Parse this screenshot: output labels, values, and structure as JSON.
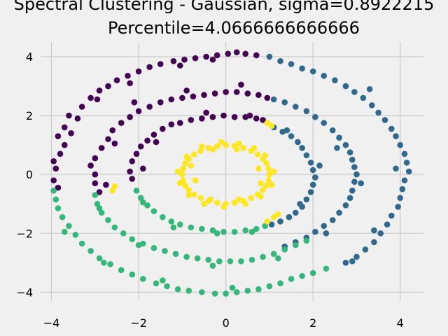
{
  "chart_data": {
    "type": "scatter",
    "title_lines": [
      "Spectral Clustering - Gaussian, sigma=0.8922215",
      "Percentile=4.0666666666666"
    ],
    "xlabel": "",
    "ylabel": "",
    "xlim": [
      -4.25,
      4.55
    ],
    "ylim": [
      -4.3,
      4.5
    ],
    "xticks": [
      -4,
      -2,
      0,
      2,
      4
    ],
    "yticks": [
      -4,
      -2,
      0,
      2,
      4
    ],
    "grid": true,
    "colors": [
      "#440154",
      "#31688e",
      "#35b779",
      "#fde725"
    ],
    "series": [
      {
        "color": "#440154",
        "points": [
          [
            -3.95,
            0.45
          ],
          [
            -3.9,
            0.2
          ],
          [
            -3.95,
            -0.2
          ],
          [
            -3.85,
            -0.45
          ],
          [
            -3.8,
            0.7
          ],
          [
            -3.7,
            1.0
          ],
          [
            -3.85,
            1.3
          ],
          [
            -3.7,
            1.6
          ],
          [
            -3.55,
            1.4
          ],
          [
            -3.4,
            1.9
          ],
          [
            -3.3,
            2.3
          ],
          [
            -3.1,
            2.6
          ],
          [
            -2.9,
            2.85
          ],
          [
            -2.7,
            3.0
          ],
          [
            -2.5,
            3.2
          ],
          [
            -2.25,
            3.35
          ],
          [
            -2.0,
            3.5
          ],
          [
            -1.75,
            3.65
          ],
          [
            -1.5,
            3.75
          ],
          [
            -1.2,
            3.85
          ],
          [
            -0.95,
            3.9
          ],
          [
            -0.7,
            3.95
          ],
          [
            -0.45,
            4.0
          ],
          [
            -0.2,
            4.05
          ],
          [
            0.05,
            4.1
          ],
          [
            0.25,
            4.15
          ],
          [
            0.45,
            4.1
          ],
          [
            0.7,
            4.05
          ],
          [
            -3.6,
            2.0
          ],
          [
            -2.95,
            2.55
          ],
          [
            -2.2,
            3.1
          ],
          [
            -1.05,
            3.7
          ],
          [
            -0.3,
            3.9
          ],
          [
            -3.1,
            0.3
          ],
          [
            -3.0,
            0.0
          ],
          [
            -3.0,
            -0.3
          ],
          [
            -2.9,
            -0.6
          ],
          [
            -3.0,
            0.55
          ],
          [
            -2.85,
            0.9
          ],
          [
            -2.7,
            1.2
          ],
          [
            -2.6,
            1.5
          ],
          [
            -2.4,
            1.75
          ],
          [
            -2.2,
            1.95
          ],
          [
            -2.0,
            2.15
          ],
          [
            -1.75,
            2.3
          ],
          [
            -1.5,
            2.45
          ],
          [
            -1.25,
            2.55
          ],
          [
            -1.0,
            2.6
          ],
          [
            -0.75,
            2.65
          ],
          [
            -0.5,
            2.7
          ],
          [
            -0.25,
            2.75
          ],
          [
            0.0,
            2.8
          ],
          [
            0.25,
            2.8
          ],
          [
            0.5,
            2.75
          ],
          [
            0.75,
            2.7
          ],
          [
            0.95,
            2.6
          ],
          [
            -2.75,
            -0.35
          ],
          [
            -2.55,
            1.05
          ],
          [
            -2.1,
            2.45
          ],
          [
            -0.9,
            2.85
          ],
          [
            0.35,
            3.05
          ],
          [
            -2.2,
            0.1
          ],
          [
            -2.15,
            0.45
          ],
          [
            -2.05,
            0.7
          ],
          [
            -1.95,
            0.95
          ],
          [
            -1.8,
            1.15
          ],
          [
            -1.65,
            1.35
          ],
          [
            -1.45,
            1.55
          ],
          [
            -1.25,
            1.7
          ],
          [
            -1.05,
            1.75
          ],
          [
            -0.8,
            1.85
          ],
          [
            -0.55,
            1.9
          ],
          [
            -0.3,
            1.95
          ],
          [
            -0.05,
            2.0
          ],
          [
            0.2,
            1.95
          ],
          [
            0.45,
            1.95
          ],
          [
            0.7,
            1.9
          ],
          [
            0.85,
            1.85
          ],
          [
            -2.15,
            -0.15
          ],
          [
            -1.9,
            0.2
          ],
          [
            -1.6,
            1.1
          ],
          [
            -0.45,
            2.1
          ],
          [
            0.55,
            2.0
          ]
        ]
      },
      {
        "color": "#31688e",
        "points": [
          [
            1.0,
            4.0
          ],
          [
            1.25,
            3.85
          ],
          [
            1.5,
            3.75
          ],
          [
            1.75,
            3.6
          ],
          [
            2.0,
            3.5
          ],
          [
            2.25,
            3.35
          ],
          [
            2.5,
            3.2
          ],
          [
            2.75,
            3.0
          ],
          [
            2.95,
            2.8
          ],
          [
            3.15,
            2.6
          ],
          [
            3.35,
            2.35
          ],
          [
            3.5,
            2.1
          ],
          [
            3.65,
            1.85
          ],
          [
            3.8,
            1.55
          ],
          [
            3.9,
            1.3
          ],
          [
            4.0,
            1.0
          ],
          [
            4.1,
            0.7
          ],
          [
            4.15,
            0.4
          ],
          [
            4.2,
            0.1
          ],
          [
            4.1,
            -0.2
          ],
          [
            4.05,
            -0.5
          ],
          [
            4.0,
            -0.8
          ],
          [
            3.95,
            -1.1
          ],
          [
            3.8,
            -1.4
          ],
          [
            3.7,
            -1.7
          ],
          [
            3.55,
            -2.0
          ],
          [
            3.4,
            -2.3
          ],
          [
            3.2,
            -2.55
          ],
          [
            3.0,
            -2.8
          ],
          [
            2.75,
            -3.0
          ],
          [
            3.3,
            2.9
          ],
          [
            3.9,
            0.2
          ],
          [
            3.4,
            -1.9
          ],
          [
            2.9,
            -2.95
          ],
          [
            1.1,
            2.55
          ],
          [
            1.35,
            2.45
          ],
          [
            1.6,
            2.3
          ],
          [
            1.85,
            2.15
          ],
          [
            2.05,
            1.95
          ],
          [
            2.25,
            1.75
          ],
          [
            2.45,
            1.5
          ],
          [
            2.6,
            1.25
          ],
          [
            2.75,
            1.0
          ],
          [
            2.85,
            0.75
          ],
          [
            2.9,
            0.5
          ],
          [
            2.95,
            0.25
          ],
          [
            3.0,
            0.0
          ],
          [
            2.95,
            -0.25
          ],
          [
            2.9,
            -0.55
          ],
          [
            2.85,
            -0.8
          ],
          [
            2.75,
            -1.05
          ],
          [
            2.6,
            -1.3
          ],
          [
            2.45,
            -1.55
          ],
          [
            2.25,
            -1.75
          ],
          [
            2.05,
            -1.95
          ],
          [
            1.85,
            -2.15
          ],
          [
            1.6,
            -2.3
          ],
          [
            1.35,
            -2.45
          ],
          [
            2.55,
            0.9
          ],
          [
            3.1,
            -0.3
          ],
          [
            2.3,
            -2.0
          ],
          [
            1.1,
            1.6
          ],
          [
            1.3,
            1.45
          ],
          [
            1.5,
            1.3
          ],
          [
            1.65,
            1.1
          ],
          [
            1.75,
            0.9
          ],
          [
            1.85,
            0.65
          ],
          [
            1.95,
            0.4
          ],
          [
            2.0,
            0.15
          ],
          [
            2.05,
            -0.1
          ],
          [
            2.0,
            -0.35
          ],
          [
            1.95,
            -0.6
          ],
          [
            1.85,
            -0.85
          ],
          [
            1.75,
            -1.1
          ],
          [
            1.6,
            -1.3
          ],
          [
            1.45,
            -1.45
          ],
          [
            1.25,
            -1.6
          ],
          [
            1.05,
            -1.7
          ],
          [
            2.15,
            0.3
          ],
          [
            1.7,
            -1.0
          ],
          [
            1.4,
            1.5
          ]
        ]
      },
      {
        "color": "#35b779",
        "points": [
          [
            -3.95,
            -0.55
          ],
          [
            -3.9,
            -0.85
          ],
          [
            -3.85,
            -1.15
          ],
          [
            -3.75,
            -1.45
          ],
          [
            -3.6,
            -1.75
          ],
          [
            -3.45,
            -2.05
          ],
          [
            -3.3,
            -2.35
          ],
          [
            -3.1,
            -2.6
          ],
          [
            -2.9,
            -2.85
          ],
          [
            -2.65,
            -3.05
          ],
          [
            -2.4,
            -3.25
          ],
          [
            -2.15,
            -3.4
          ],
          [
            -1.9,
            -3.55
          ],
          [
            -1.6,
            -3.7
          ],
          [
            -1.35,
            -3.8
          ],
          [
            -1.1,
            -3.9
          ],
          [
            -0.85,
            -3.95
          ],
          [
            -0.55,
            -4.0
          ],
          [
            -0.25,
            -4.05
          ],
          [
            0.0,
            -4.05
          ],
          [
            0.25,
            -4.0
          ],
          [
            0.5,
            -3.95
          ],
          [
            0.75,
            -3.9
          ],
          [
            1.0,
            -3.8
          ],
          [
            1.25,
            -3.7
          ],
          [
            1.5,
            -3.55
          ],
          [
            1.75,
            -3.45
          ],
          [
            2.0,
            -3.35
          ],
          [
            2.3,
            -3.2
          ],
          [
            -3.7,
            -1.95
          ],
          [
            -2.8,
            -3.0
          ],
          [
            -1.45,
            -3.6
          ],
          [
            0.15,
            -3.85
          ],
          [
            -3.0,
            -0.7
          ],
          [
            -2.95,
            -1.0
          ],
          [
            -2.85,
            -1.3
          ],
          [
            -2.7,
            -1.55
          ],
          [
            -2.55,
            -1.8
          ],
          [
            -2.35,
            -2.0
          ],
          [
            -2.15,
            -2.2
          ],
          [
            -1.9,
            -2.35
          ],
          [
            -1.65,
            -2.5
          ],
          [
            -1.4,
            -2.6
          ],
          [
            -1.15,
            -2.7
          ],
          [
            -0.9,
            -2.8
          ],
          [
            -0.65,
            -2.85
          ],
          [
            -0.4,
            -2.9
          ],
          [
            -0.15,
            -2.95
          ],
          [
            0.1,
            -2.95
          ],
          [
            0.35,
            -2.95
          ],
          [
            0.6,
            -2.9
          ],
          [
            0.85,
            -2.8
          ],
          [
            1.1,
            -2.7
          ],
          [
            1.35,
            -2.55
          ],
          [
            1.6,
            -2.4
          ],
          [
            1.85,
            -2.25
          ],
          [
            -2.9,
            -1.15
          ],
          [
            -2.0,
            -2.4
          ],
          [
            -0.3,
            -3.1
          ],
          [
            1.2,
            -2.85
          ],
          [
            -2.05,
            -0.55
          ],
          [
            -1.95,
            -0.8
          ],
          [
            -1.8,
            -1.05
          ],
          [
            -1.65,
            -1.25
          ],
          [
            -1.45,
            -1.45
          ],
          [
            -1.25,
            -1.6
          ],
          [
            -1.05,
            -1.7
          ],
          [
            -0.8,
            -1.8
          ],
          [
            -0.55,
            -1.85
          ],
          [
            -0.3,
            -1.9
          ],
          [
            -0.05,
            -1.95
          ],
          [
            0.2,
            -1.95
          ],
          [
            0.45,
            -1.9
          ],
          [
            0.7,
            -1.85
          ],
          [
            0.9,
            -1.75
          ],
          [
            -1.9,
            -0.95
          ],
          [
            -1.2,
            -1.8
          ],
          [
            -0.2,
            -2.0
          ],
          [
            0.6,
            -1.95
          ]
        ]
      },
      {
        "color": "#fde725",
        "points": [
          [
            -1.0,
            0.0
          ],
          [
            -0.98,
            0.2
          ],
          [
            -0.93,
            0.38
          ],
          [
            -0.85,
            0.53
          ],
          [
            -0.73,
            0.68
          ],
          [
            -0.58,
            0.8
          ],
          [
            -0.4,
            0.9
          ],
          [
            -0.2,
            0.96
          ],
          [
            0.0,
            1.0
          ],
          [
            0.2,
            0.97
          ],
          [
            0.4,
            0.9
          ],
          [
            0.58,
            0.8
          ],
          [
            0.73,
            0.68
          ],
          [
            0.85,
            0.53
          ],
          [
            0.93,
            0.38
          ],
          [
            0.98,
            0.2
          ],
          [
            1.0,
            0.0
          ],
          [
            0.98,
            -0.2
          ],
          [
            0.93,
            -0.38
          ],
          [
            0.85,
            -0.53
          ],
          [
            0.73,
            -0.68
          ],
          [
            0.58,
            -0.8
          ],
          [
            0.4,
            -0.9
          ],
          [
            0.2,
            -0.96
          ],
          [
            0.0,
            -1.0
          ],
          [
            -0.2,
            -0.96
          ],
          [
            -0.4,
            -0.9
          ],
          [
            -0.58,
            -0.8
          ],
          [
            -0.73,
            -0.68
          ],
          [
            -0.85,
            -0.53
          ],
          [
            -0.93,
            -0.38
          ],
          [
            -0.98,
            -0.2
          ],
          [
            -1.1,
            0.1
          ],
          [
            -1.05,
            -0.3
          ],
          [
            -0.9,
            0.6
          ],
          [
            -0.55,
            0.95
          ],
          [
            -0.1,
            1.1
          ],
          [
            0.3,
            1.05
          ],
          [
            0.65,
            0.9
          ],
          [
            0.9,
            0.65
          ],
          [
            1.1,
            0.1
          ],
          [
            1.05,
            -0.35
          ],
          [
            0.8,
            -0.75
          ],
          [
            0.45,
            -1.0
          ],
          [
            -0.05,
            -1.1
          ],
          [
            -0.5,
            -1.0
          ],
          [
            -0.85,
            -0.7
          ],
          [
            -0.8,
            0.3
          ],
          [
            -0.7,
            -0.2
          ],
          [
            0.75,
            0.2
          ],
          [
            0.8,
            -0.3
          ],
          [
            -0.3,
            0.85
          ],
          [
            0.25,
            0.85
          ],
          [
            0.3,
            -0.85
          ],
          [
            -0.35,
            -0.85
          ],
          [
            0.95,
            1.75
          ],
          [
            1.05,
            1.65
          ],
          [
            1.1,
            -1.45
          ],
          [
            1.2,
            -1.35
          ],
          [
            -2.55,
            -0.4
          ],
          [
            -2.6,
            -0.55
          ],
          [
            0.95,
            -1.6
          ]
        ]
      }
    ]
  }
}
